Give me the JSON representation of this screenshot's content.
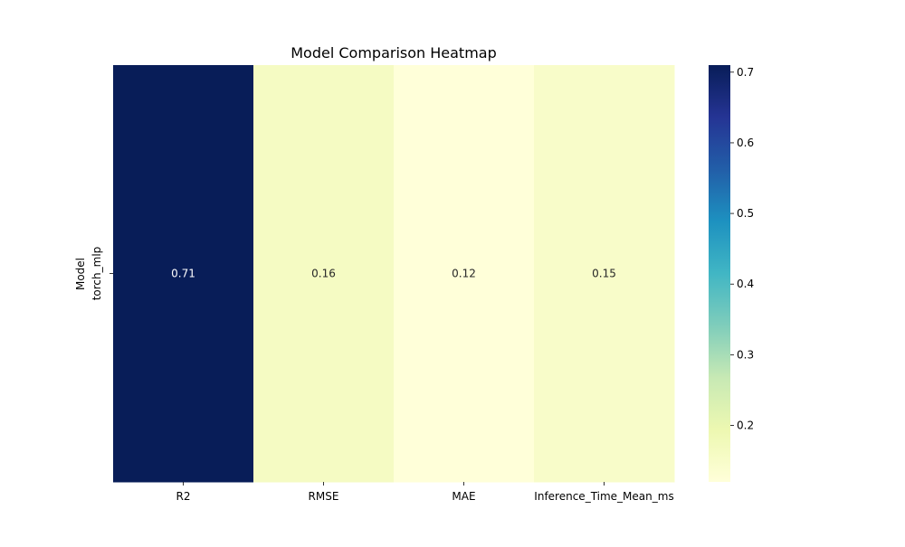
{
  "chart_data": {
    "type": "heatmap",
    "title": "Model Comparison Heatmap",
    "xlabel": "",
    "ylabel": "Model",
    "rows": [
      "torch_mlp"
    ],
    "columns": [
      "R2",
      "RMSE",
      "MAE",
      "Inference_Time_Mean_ms"
    ],
    "values": [
      [
        0.71,
        0.16,
        0.12,
        0.15
      ]
    ],
    "annotations": [
      [
        "0.71",
        "0.16",
        "0.12",
        "0.15"
      ]
    ],
    "colormap": "YlGnBu",
    "colorbar": {
      "vmin": 0.12,
      "vmax": 0.71,
      "ticks": [
        0.2,
        0.3,
        0.4,
        0.5,
        0.6,
        0.7
      ],
      "tick_labels": [
        "0.2",
        "0.3",
        "0.4",
        "0.5",
        "0.6",
        "0.7"
      ]
    },
    "grid": false,
    "legend": "colorbar-right"
  }
}
